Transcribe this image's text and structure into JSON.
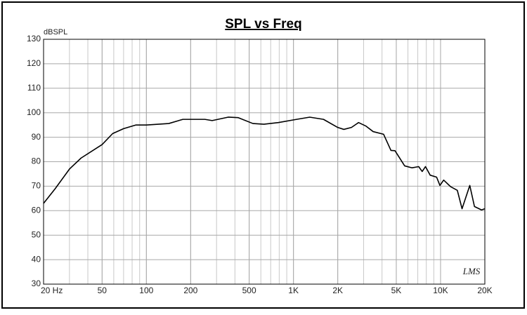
{
  "chart_data": {
    "type": "line",
    "title": "SPL vs Freq",
    "y_label": "dBSPL",
    "logo": "LMS",
    "log_x": true,
    "grid": true,
    "color": "#000000",
    "x": [
      20,
      24,
      30,
      36,
      50,
      59,
      70,
      85,
      100,
      142,
      177,
      250,
      280,
      360,
      420,
      530,
      630,
      790,
      1050,
      1290,
      1600,
      2000,
      2200,
      2480,
      2770,
      3100,
      3480,
      4100,
      4600,
      4900,
      5700,
      6400,
      7100,
      7500,
      7900,
      8500,
      9400,
      9900,
      10500,
      11700,
      13000,
      14000,
      15800,
      17000,
      19000,
      20000
    ],
    "series": [
      {
        "values": [
          63,
          69,
          77,
          81.5,
          87,
          91.5,
          93.5,
          95,
          95,
          95.6,
          97.3,
          97.3,
          96.8,
          98.2,
          98,
          95.6,
          95.3,
          96,
          97.3,
          98.2,
          97.3,
          94,
          93.2,
          94,
          96,
          94.6,
          92.3,
          91.2,
          84.6,
          84.5,
          78.3,
          77.5,
          78,
          76,
          78,
          74.5,
          73.7,
          70.3,
          72.5,
          69.8,
          68.3,
          60.8,
          70.3,
          61.7,
          60.3,
          60.8
        ]
      }
    ],
    "xlim": [
      20,
      20000
    ],
    "ylim": [
      30,
      130
    ],
    "xticks": [
      {
        "value": 20,
        "label": "20  Hz"
      },
      50,
      100,
      200,
      500,
      {
        "value": 1000,
        "label": "1K"
      },
      {
        "value": 2000,
        "label": "2K"
      },
      {
        "value": 5000,
        "label": "5K"
      },
      {
        "value": 10000,
        "label": "10K"
      },
      {
        "value": 20000,
        "label": "20K"
      }
    ],
    "yticks": [
      30,
      40,
      50,
      60,
      70,
      80,
      90,
      100,
      110,
      120,
      130
    ]
  }
}
